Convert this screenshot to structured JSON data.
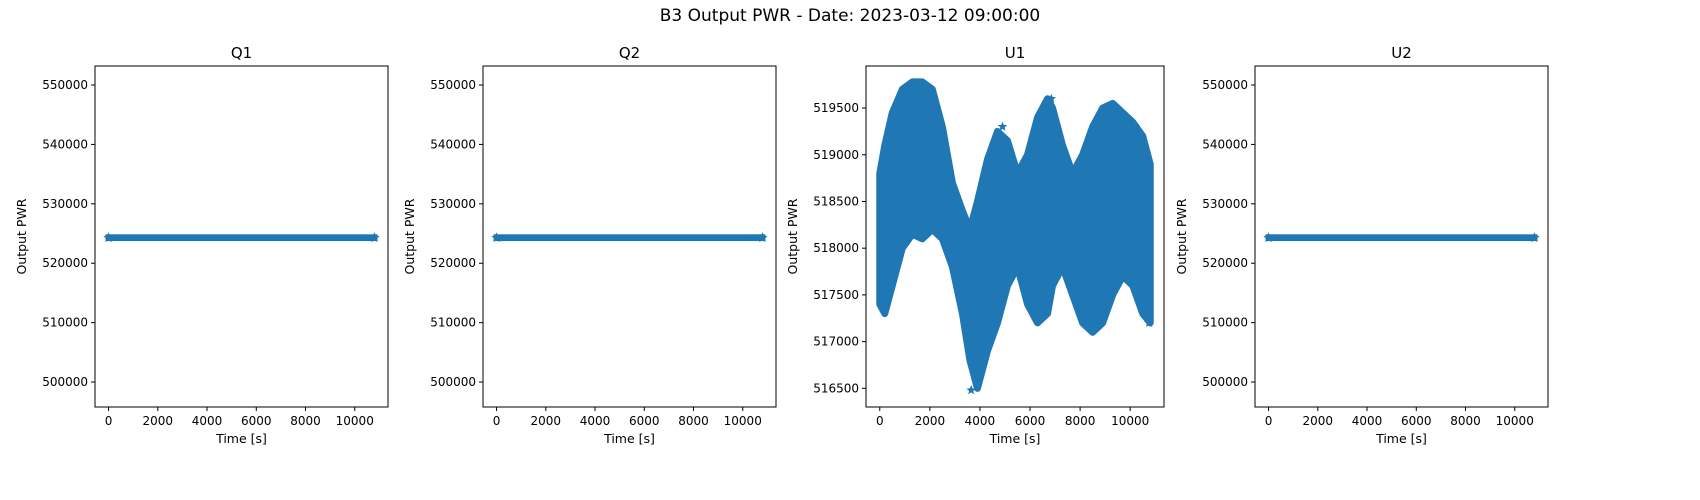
{
  "figure": {
    "title": "B3 Output PWR - Date: 2023-03-12 09:00:00"
  },
  "chart_data": [
    {
      "type": "scatter",
      "title": "Q1",
      "xlabel": "Time [s]",
      "ylabel": "Output PWR",
      "xlim": [
        -550,
        11350
      ],
      "ylim": [
        495800,
        553200
      ],
      "x_ticks": [
        0,
        2000,
        4000,
        6000,
        8000,
        10000
      ],
      "y_ticks": [
        500000,
        510000,
        520000,
        530000,
        540000,
        550000
      ],
      "series": [
        {
          "marker": "star",
          "color": "#1f77b4",
          "band": {
            "x_start": 0,
            "x_end": 10800,
            "y_low": 524150,
            "y_high": 524450
          }
        }
      ]
    },
    {
      "type": "scatter",
      "title": "Q2",
      "xlabel": "Time [s]",
      "ylabel": "Output PWR",
      "xlim": [
        -550,
        11350
      ],
      "ylim": [
        495800,
        553200
      ],
      "x_ticks": [
        0,
        2000,
        4000,
        6000,
        8000,
        10000
      ],
      "y_ticks": [
        500000,
        510000,
        520000,
        530000,
        540000,
        550000
      ],
      "series": [
        {
          "marker": "star",
          "color": "#1f77b4",
          "band": {
            "x_start": 0,
            "x_end": 10800,
            "y_low": 524150,
            "y_high": 524450
          }
        }
      ]
    },
    {
      "type": "scatter",
      "title": "U1",
      "xlabel": "Time [s]",
      "ylabel": "Output PWR",
      "xlim": [
        -550,
        11350
      ],
      "ylim": [
        516300,
        519950
      ],
      "x_ticks": [
        0,
        2000,
        4000,
        6000,
        8000,
        10000
      ],
      "y_ticks": [
        516500,
        517000,
        517500,
        518000,
        518500,
        519000,
        519500
      ],
      "series": [
        {
          "marker": "star",
          "color": "#1f77b4",
          "envelope": {
            "x": [
              0,
              200,
              500,
              900,
              1300,
              1700,
              2100,
              2500,
              2900,
              3300,
              3600,
              3900,
              4300,
              4700,
              5100,
              5500,
              5900,
              6300,
              6700,
              6900,
              7300,
              7700,
              8100,
              8500,
              8900,
              9300,
              9700,
              10100,
              10500,
              10800
            ],
            "upper": [
              518800,
              519100,
              519450,
              519700,
              519780,
              519780,
              519700,
              519300,
              518700,
              518400,
              518200,
              518500,
              518950,
              519250,
              519150,
              518800,
              519000,
              519400,
              519600,
              519500,
              519100,
              518800,
              519000,
              519300,
              519500,
              519550,
              519450,
              519350,
              519200,
              518900
            ],
            "lower": [
              517400,
              517300,
              517600,
              518000,
              518150,
              518100,
              518200,
              518100,
              517800,
              517300,
              516800,
              516500,
              516900,
              517200,
              517600,
              517800,
              517400,
              517200,
              517300,
              517600,
              517800,
              517500,
              517200,
              517100,
              517200,
              517500,
              517700,
              517600,
              517300,
              517200
            ]
          },
          "outliers": [
            [
              3650,
              516480
            ],
            [
              10750,
              517200
            ],
            [
              4900,
              519300
            ],
            [
              6850,
              519600
            ]
          ]
        }
      ]
    },
    {
      "type": "scatter",
      "title": "U2",
      "xlabel": "Time [s]",
      "ylabel": "Output PWR",
      "xlim": [
        -550,
        11350
      ],
      "ylim": [
        495800,
        553200
      ],
      "x_ticks": [
        0,
        2000,
        4000,
        6000,
        8000,
        10000
      ],
      "y_ticks": [
        500000,
        510000,
        520000,
        530000,
        540000,
        550000
      ],
      "series": [
        {
          "marker": "star",
          "color": "#1f77b4",
          "band": {
            "x_start": 0,
            "x_end": 10800,
            "y_low": 524150,
            "y_high": 524450
          }
        }
      ]
    }
  ]
}
